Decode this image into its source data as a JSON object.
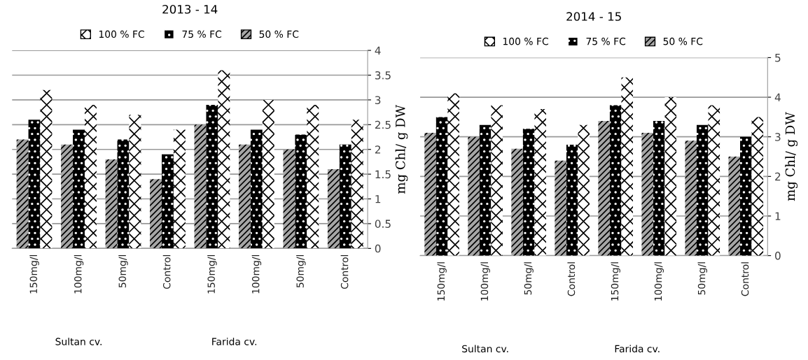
{
  "chart_data": [
    {
      "type": "bar",
      "title": "2013 - 14",
      "ylabel": "mg Chl/ g DW",
      "categories": [
        "150mg/l",
        "100mg/l",
        "50mg/l",
        "Control",
        "150mg/l",
        "100mg/l",
        "50mg/l",
        "Control"
      ],
      "series": [
        {
          "name": "50 % FC",
          "color": "#a6a6a6",
          "values": [
            2.2,
            2.1,
            1.8,
            1.4,
            2.5,
            2.1,
            2.0,
            1.6
          ]
        },
        {
          "name": "75 % FC",
          "color": "#000000",
          "values": [
            2.6,
            2.4,
            2.2,
            1.9,
            2.9,
            2.4,
            2.3,
            2.1
          ]
        },
        {
          "name": "100 % FC",
          "color": "#ffffff",
          "values": [
            3.2,
            2.9,
            2.7,
            2.4,
            3.6,
            3.0,
            2.9,
            2.6
          ]
        }
      ],
      "ylim": [
        0,
        4
      ],
      "yticks": [
        0,
        0.5,
        1,
        1.5,
        2,
        2.5,
        3,
        3.5,
        4
      ],
      "grid": "y",
      "legend": "top",
      "annotations": [
        "Sultan cv.",
        "Farida cv."
      ]
    },
    {
      "type": "bar",
      "title": "2014 - 15",
      "ylabel": "mg Chl/ g DW",
      "categories": [
        "150mg/l",
        "100mg/l",
        "50mg/l",
        "Control",
        "150mg/l",
        "100mg/l",
        "50mg/l",
        "Control"
      ],
      "series": [
        {
          "name": "50 % FC",
          "color": "#a6a6a6",
          "values": [
            3.1,
            3.0,
            2.7,
            2.4,
            3.4,
            3.1,
            2.9,
            2.5
          ]
        },
        {
          "name": "75 % FC",
          "color": "#000000",
          "values": [
            3.5,
            3.3,
            3.2,
            2.8,
            3.8,
            3.4,
            3.3,
            3.0
          ]
        },
        {
          "name": "100 % FC",
          "color": "#ffffff",
          "values": [
            4.1,
            3.8,
            3.7,
            3.3,
            4.5,
            4.0,
            3.8,
            3.5
          ]
        }
      ],
      "ylim": [
        0,
        5
      ],
      "yticks": [
        0,
        1,
        2,
        3,
        4,
        5
      ],
      "grid": "y",
      "legend": "top",
      "annotations": [
        "Sultan cv.",
        "Farida cv."
      ]
    }
  ]
}
